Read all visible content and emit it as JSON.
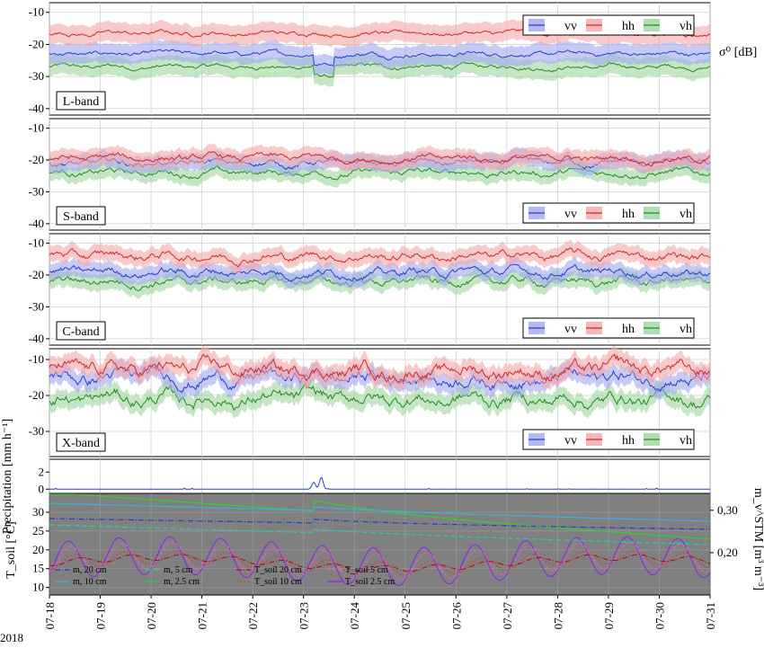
{
  "chart_data": {
    "type": "line",
    "year_label": "2018",
    "x_ticks": [
      "07-18",
      "07-19",
      "07-20",
      "07-21",
      "07-22",
      "07-23",
      "07-24",
      "07-25",
      "07-26",
      "07-27",
      "07-28",
      "07-29",
      "07-30",
      "07-31"
    ],
    "colors": {
      "vv": "#2b3bd6",
      "hh": "#d62728",
      "vh": "#1f8f1f",
      "vv_band": "#9fa8f0",
      "hh_band": "#f4a6a6",
      "vh_band": "#9fd49f",
      "soil_bg": "#808080"
    },
    "legend_labels": {
      "vv": "vv",
      "hh": "hh",
      "vh": "vh"
    },
    "sigma_label": "σ⁰ [dB]",
    "bands": [
      {
        "label": "L-band",
        "ylim": [
          -42,
          -7
        ],
        "yticks": [
          "-10",
          "-20",
          "-30",
          "-40"
        ],
        "legend": "top-right",
        "vv": -23,
        "hh": -16.5,
        "vh": -27,
        "spread": 3,
        "noise": 0.8
      },
      {
        "label": "S-band",
        "ylim": [
          -42,
          -7
        ],
        "yticks": [
          "-10",
          "-20",
          "-30",
          "-40"
        ],
        "legend": "bottom-right",
        "vv": -21,
        "hh": -19.5,
        "vh": -24,
        "spread": 2.5,
        "noise": 1.2
      },
      {
        "label": "C-band",
        "ylim": [
          -42,
          -7
        ],
        "yticks": [
          "-10",
          "-20",
          "-30",
          "-40"
        ],
        "legend": "bottom-right",
        "vv": -19,
        "hh": -14,
        "vh": -22,
        "spread": 2.5,
        "noise": 1.5
      },
      {
        "label": "X-band",
        "ylim": [
          -37,
          -7
        ],
        "yticks": [
          "-10",
          "-20",
          "-30"
        ],
        "legend": "bottom-right",
        "vv": -15,
        "hh": -13,
        "vh": -21,
        "spread": 2.5,
        "noise": 2.2
      }
    ],
    "precipitation": {
      "ylabel": "Precipitation [mm h⁻¹]",
      "ylim": [
        -0.5,
        3.5
      ],
      "yticks": [
        "0",
        "2"
      ],
      "events": [
        {
          "day": 5.2,
          "value": 0.8
        },
        {
          "day": 5.35,
          "value": 1.4
        }
      ]
    },
    "soil": {
      "ylabel_left": "T_soil [°C]",
      "ylim": [
        8,
        35
      ],
      "yticks": [
        "10",
        "15",
        "20",
        "25",
        "30"
      ],
      "ylabel_right": "m_v^STM [m³ m⁻³]",
      "yticks_right": [
        "0,20",
        "0,30"
      ],
      "legend": [
        {
          "label": "m, 20 cm",
          "color": "#1f3fcf",
          "dash": "6,2,1,2"
        },
        {
          "label": "m, 5 cm",
          "color": "#20d0a0",
          "dash": "6,3"
        },
        {
          "label": "T_soil 20 cm",
          "color": "#b01010",
          "dash": "6,2,1,2"
        },
        {
          "label": "T_soil   5 cm",
          "color": "#e060c0",
          "dash": "4,2"
        },
        {
          "label": "m, 10 cm",
          "color": "#3ab0e0",
          "dash": ""
        },
        {
          "label": "m, 2.5 cm",
          "color": "#30d030",
          "dash": ""
        },
        {
          "label": "T_soil 10 cm",
          "color": "#d04040",
          "dash": "2,2"
        },
        {
          "label": "T_soil 2.5 cm",
          "color": "#8a2be2",
          "dash": ""
        }
      ]
    }
  }
}
